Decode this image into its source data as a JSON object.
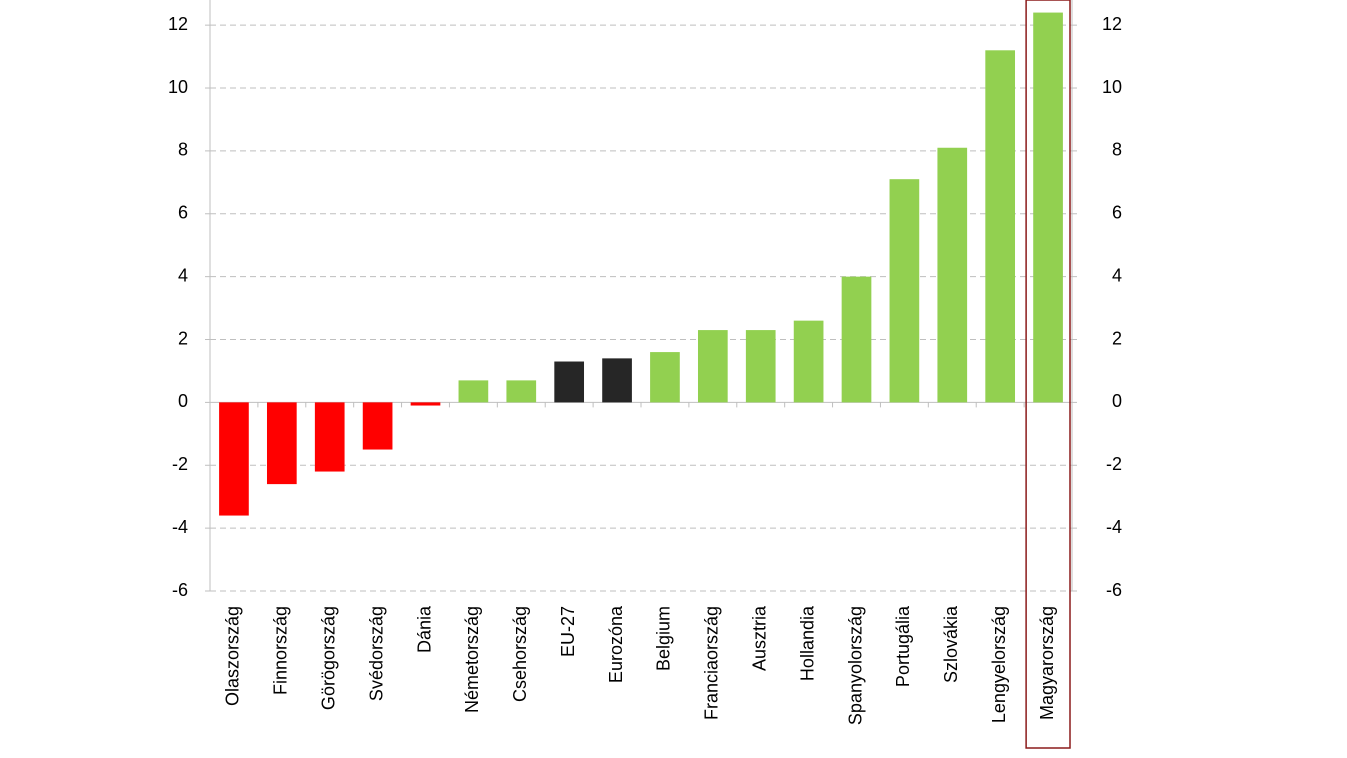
{
  "chart_data": {
    "type": "bar",
    "categories": [
      "Olaszország",
      "Finnország",
      "Görögország",
      "Svédország",
      "Dánia",
      "Németország",
      "Csehország",
      "EU-27",
      "Eurozóna",
      "Belgium",
      "Franciaország",
      "Ausztria",
      "Hollandia",
      "Spanyolország",
      "Portugália",
      "Szlovákia",
      "Lengyelország",
      "Magyarország"
    ],
    "values": [
      -3.6,
      -2.6,
      -2.2,
      -1.5,
      -0.1,
      0.7,
      0.7,
      1.3,
      1.4,
      1.6,
      2.3,
      2.3,
      2.6,
      4.0,
      7.1,
      8.1,
      11.2,
      12.4
    ],
    "colors": [
      "#ff0000",
      "#ff0000",
      "#ff0000",
      "#ff0000",
      "#ff0000",
      "#92d050",
      "#92d050",
      "#262626",
      "#262626",
      "#92d050",
      "#92d050",
      "#92d050",
      "#92d050",
      "#92d050",
      "#92d050",
      "#92d050",
      "#92d050",
      "#92d050"
    ],
    "ylim": [
      -6,
      12.8
    ],
    "yticks": [
      -6,
      -4,
      -2,
      0,
      2,
      4,
      6,
      8,
      10,
      12
    ],
    "y2lim": [
      -6,
      12.8
    ],
    "y2ticks": [
      -6,
      -4,
      -2,
      0,
      2,
      4,
      6,
      8,
      10,
      12
    ],
    "grid": true
  }
}
